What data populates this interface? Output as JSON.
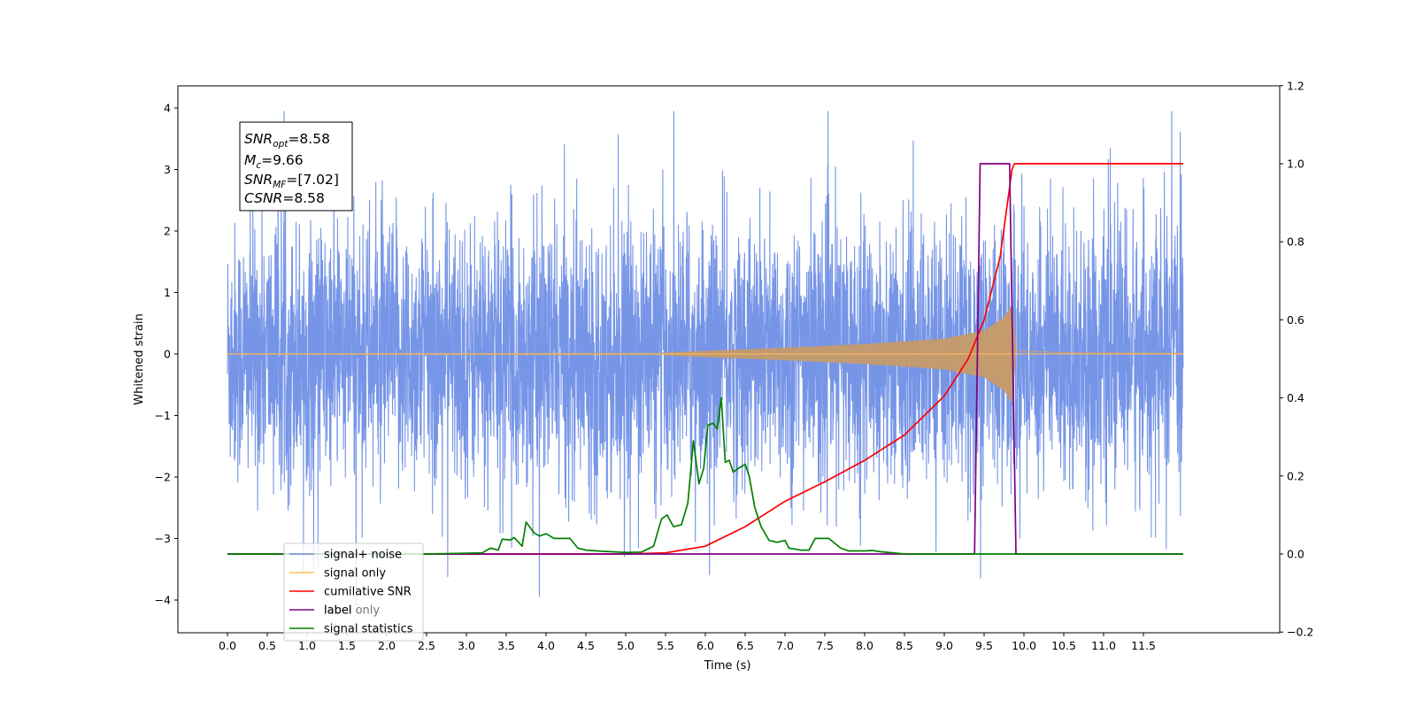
{
  "chart_data": {
    "type": "line",
    "title": "",
    "xlabel": "Time (s)",
    "ylabel": "Whitened strain",
    "xlim": [
      -0.6,
      12.6
    ],
    "ylim": [
      -4.5,
      4.35
    ],
    "y2lim": [
      -0.2,
      1.2
    ],
    "x_ticks": [
      "0.0",
      "0.5",
      "1.0",
      "1.5",
      "2.0",
      "2.5",
      "3.0",
      "3.5",
      "4.0",
      "4.5",
      "5.0",
      "5.5",
      "6.0",
      "6.5",
      "7.0",
      "7.5",
      "8.0",
      "8.5",
      "9.0",
      "9.5",
      "10.0",
      "10.5",
      "11.0",
      "11.5"
    ],
    "y_ticks": [
      "4",
      "3",
      "2",
      "1",
      "0",
      "−1",
      "−2",
      "−3",
      "−4"
    ],
    "y2_ticks": [
      "1.2",
      "1.0",
      "0.8",
      "0.6",
      "0.4",
      "0.2",
      "0.0",
      "−0.2"
    ],
    "grid": false,
    "legend_position": "lower-left",
    "stats_box": {
      "snr_opt": {
        "base": "SNR",
        "sub": "opt",
        "value": "=8.58"
      },
      "mc": {
        "base": "M",
        "sub": "c",
        "value": "=9.66"
      },
      "snr_mf": {
        "base": "SNR",
        "sub": "MF",
        "value": "=[7.02]"
      },
      "csnr": {
        "base": "CSNR",
        "sub": "",
        "value": "=8.58"
      }
    },
    "series": [
      {
        "name": "signal+ noise",
        "axis": "left",
        "color": "#6f8fe6",
        "kind": "noise",
        "x_range": [
          0.0,
          12.0
        ],
        "envelope": 2.0,
        "description_values": {
          "min": -4.1,
          "max": 3.95
        }
      },
      {
        "name": "signal only",
        "axis": "left",
        "color": "#ffbf5a",
        "kind": "chirp",
        "x_range": [
          0.0,
          12.0
        ],
        "merger_time": 9.85,
        "envelope_points": [
          [
            0.0,
            0.01
          ],
          [
            5.5,
            0.02
          ],
          [
            6.0,
            0.05
          ],
          [
            7.0,
            0.1
          ],
          [
            8.0,
            0.16
          ],
          [
            9.0,
            0.25
          ],
          [
            9.5,
            0.38
          ],
          [
            9.75,
            0.6
          ],
          [
            9.85,
            0.8
          ],
          [
            9.9,
            0.05
          ],
          [
            10.5,
            0.02
          ],
          [
            12.0,
            0.01
          ]
        ]
      },
      {
        "name": "cumilative SNR",
        "axis": "right",
        "color": "#ff0000",
        "points": [
          [
            0.0,
            0.0
          ],
          [
            5.0,
            0.0
          ],
          [
            5.5,
            0.003
          ],
          [
            6.0,
            0.02
          ],
          [
            6.5,
            0.07
          ],
          [
            7.0,
            0.135
          ],
          [
            7.5,
            0.185
          ],
          [
            8.0,
            0.24
          ],
          [
            8.5,
            0.305
          ],
          [
            9.0,
            0.405
          ],
          [
            9.3,
            0.5
          ],
          [
            9.5,
            0.6
          ],
          [
            9.7,
            0.76
          ],
          [
            9.85,
            0.985
          ],
          [
            9.88,
            1.0
          ],
          [
            12.0,
            1.0
          ]
        ]
      },
      {
        "name": "label",
        "axis": "right",
        "color": "#800080",
        "points": [
          [
            0.0,
            0.0
          ],
          [
            9.38,
            0.0
          ],
          [
            9.45,
            1.0
          ],
          [
            9.82,
            1.0
          ],
          [
            9.9,
            0.0
          ],
          [
            12.0,
            0.0
          ]
        ]
      },
      {
        "name": "signal statistics",
        "axis": "right",
        "color": "#008000",
        "points": [
          [
            0.0,
            0.0
          ],
          [
            2.5,
            0.0
          ],
          [
            3.2,
            0.003
          ],
          [
            3.3,
            0.015
          ],
          [
            3.4,
            0.01
          ],
          [
            3.45,
            0.038
          ],
          [
            3.55,
            0.036
          ],
          [
            3.6,
            0.042
          ],
          [
            3.7,
            0.02
          ],
          [
            3.75,
            0.082
          ],
          [
            3.85,
            0.054
          ],
          [
            3.92,
            0.046
          ],
          [
            4.0,
            0.052
          ],
          [
            4.1,
            0.04
          ],
          [
            4.3,
            0.04
          ],
          [
            4.4,
            0.015
          ],
          [
            4.5,
            0.01
          ],
          [
            4.7,
            0.007
          ],
          [
            5.0,
            0.004
          ],
          [
            5.2,
            0.005
          ],
          [
            5.35,
            0.02
          ],
          [
            5.45,
            0.09
          ],
          [
            5.52,
            0.1
          ],
          [
            5.6,
            0.07
          ],
          [
            5.7,
            0.075
          ],
          [
            5.78,
            0.13
          ],
          [
            5.85,
            0.29
          ],
          [
            5.92,
            0.18
          ],
          [
            5.98,
            0.22
          ],
          [
            6.03,
            0.33
          ],
          [
            6.1,
            0.335
          ],
          [
            6.15,
            0.32
          ],
          [
            6.2,
            0.4
          ],
          [
            6.25,
            0.235
          ],
          [
            6.3,
            0.24
          ],
          [
            6.35,
            0.21
          ],
          [
            6.42,
            0.22
          ],
          [
            6.5,
            0.23
          ],
          [
            6.55,
            0.2
          ],
          [
            6.62,
            0.12
          ],
          [
            6.7,
            0.07
          ],
          [
            6.8,
            0.035
          ],
          [
            6.9,
            0.03
          ],
          [
            7.0,
            0.035
          ],
          [
            7.05,
            0.015
          ],
          [
            7.2,
            0.01
          ],
          [
            7.3,
            0.01
          ],
          [
            7.38,
            0.04
          ],
          [
            7.48,
            0.04
          ],
          [
            7.55,
            0.04
          ],
          [
            7.7,
            0.015
          ],
          [
            7.8,
            0.008
          ],
          [
            8.0,
            0.008
          ],
          [
            8.1,
            0.009
          ],
          [
            8.2,
            0.006
          ],
          [
            8.4,
            0.002
          ],
          [
            8.5,
            0.0
          ],
          [
            12.0,
            0.0
          ]
        ]
      },
      {
        "name": "",
        "axis": "right",
        "color": "#ffbf5a",
        "legend_overlay_only": true
      }
    ],
    "legend": [
      {
        "label": "signal+ noise",
        "color": "#6f8fe6"
      },
      {
        "label": "signal only",
        "color": "#ffbf5a"
      },
      {
        "label": "cumilative SNR",
        "color": "#ff0000"
      },
      {
        "label": "label",
        "color": "#800080"
      },
      {
        "label": "signal statistics",
        "color": "#008000"
      }
    ],
    "legend_ghost_label": "label only"
  }
}
